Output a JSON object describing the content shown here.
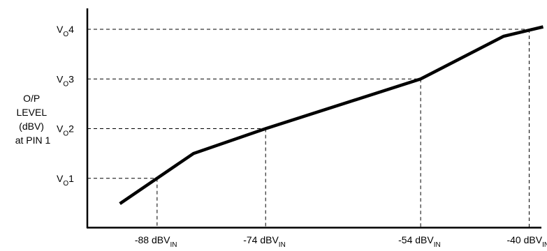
{
  "chart_data": {
    "type": "line",
    "ylabel_lines": [
      "O/P",
      "LEVEL",
      "(dBV)",
      "at PIN 1"
    ],
    "y_ticks": [
      {
        "main": "V",
        "sub": "O",
        "suffix": "1",
        "level": 1
      },
      {
        "main": "V",
        "sub": "O",
        "suffix": "2",
        "level": 2
      },
      {
        "main": "V",
        "sub": "O",
        "suffix": "3",
        "level": 3
      },
      {
        "main": "V",
        "sub": "O",
        "suffix": "4",
        "level": 4
      }
    ],
    "x_ticks": [
      {
        "main": "-88 dBV",
        "sub": "IN",
        "value": -88
      },
      {
        "main": "-74 dBV",
        "sub": "IN",
        "value": -74
      },
      {
        "main": "-54 dBV",
        "sub": "IN",
        "value": -54
      },
      {
        "main": "-40 dBV",
        "sub": "IN",
        "value": -40
      }
    ],
    "series": [
      {
        "x": [
          -92.8,
          -83.3,
          -74,
          -54,
          -43.3,
          -38.2
        ],
        "y": [
          0.49,
          1.5,
          2.0,
          3.0,
          3.86,
          4.05
        ]
      }
    ],
    "xlim": [
      -97,
      -37.7
    ],
    "ylim": [
      0,
      4.59
    ],
    "grid": "dashed guide lines from each tick to the curve",
    "colors": {
      "line": "#000000",
      "guide": "#000000"
    }
  }
}
